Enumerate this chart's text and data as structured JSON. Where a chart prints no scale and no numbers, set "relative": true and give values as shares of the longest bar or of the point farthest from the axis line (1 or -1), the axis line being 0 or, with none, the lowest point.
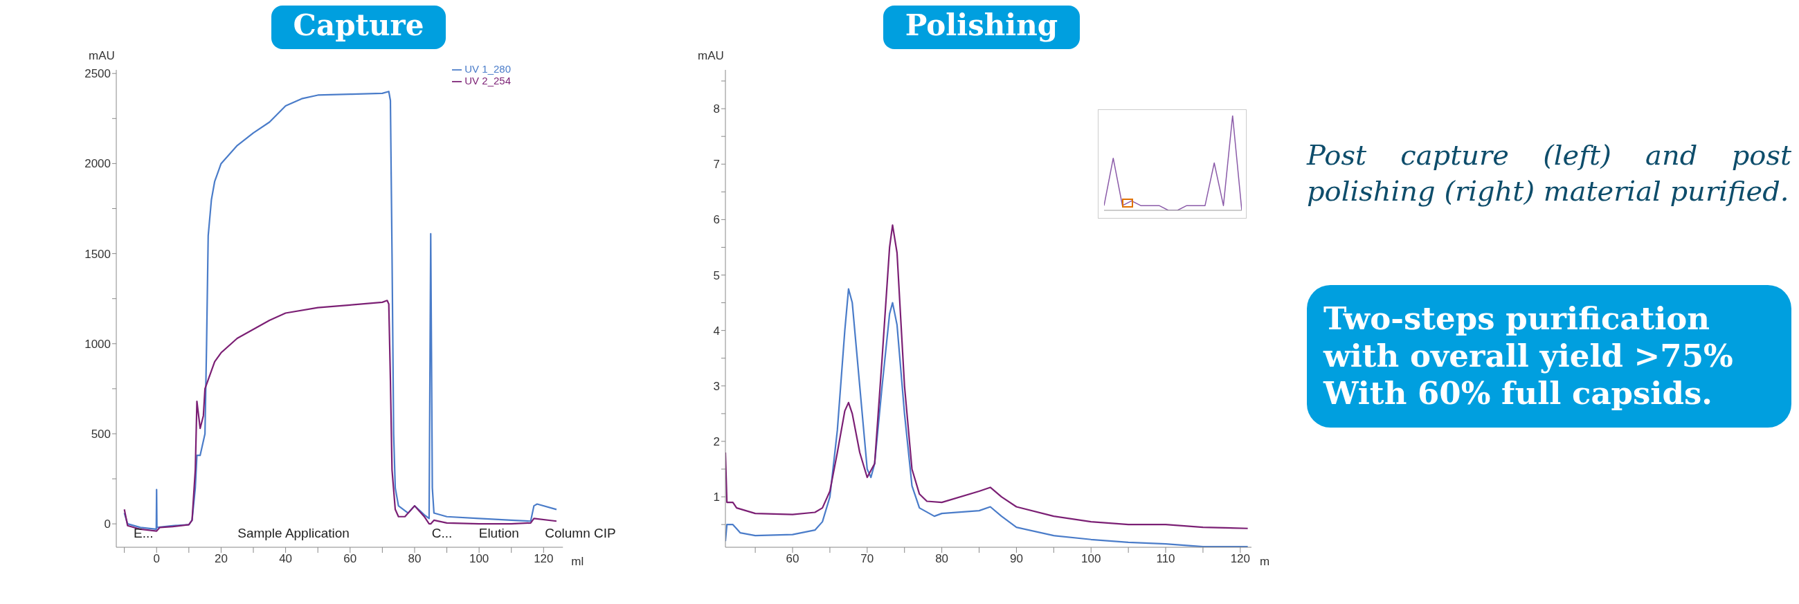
{
  "chart_data": [
    {
      "type": "line",
      "title": "Capture",
      "ylabel": "mAU",
      "xlabel": "ml",
      "legend": "top right",
      "xlim": [
        -12.5,
        126
      ],
      "ylim": [
        -130,
        2520
      ],
      "xticks": [
        {
          "value": -10,
          "label": null
        },
        0,
        {
          "value": 10,
          "label": null
        },
        20,
        {
          "value": 30,
          "label": null
        },
        40,
        {
          "value": 50,
          "label": null
        },
        60,
        {
          "value": 70,
          "label": null
        },
        80,
        {
          "value": 90,
          "label": null
        },
        100,
        {
          "value": 110,
          "label": null
        },
        120
      ],
      "yticks": [
        0,
        {
          "value": 250,
          "label": null
        },
        500,
        {
          "value": 750,
          "label": null
        },
        1000,
        {
          "value": 1250,
          "label": null
        },
        1500,
        {
          "value": 1750,
          "label": null
        },
        2000,
        {
          "value": 2250,
          "label": null
        },
        2500
      ],
      "annotations": [
        "E...",
        "Sample Application",
        "C...",
        "Elution",
        "Column CIP"
      ],
      "series": [
        {
          "name": "UV 1_280",
          "color": "#4a7cc9",
          "x": [
            -10,
            -9,
            -5,
            -0.1,
            0,
            0.1,
            5,
            10,
            11,
            12,
            12.5,
            13.5,
            15,
            15.5,
            16,
            17,
            18,
            20,
            25,
            30,
            35,
            40,
            45,
            50,
            60,
            70,
            72,
            72.5,
            73,
            73.5,
            74,
            75,
            78,
            80,
            83,
            84.5,
            85,
            85.5,
            86,
            90,
            100,
            110,
            116,
            117,
            118,
            124
          ],
          "values": [
            60,
            0,
            -20,
            -30,
            190,
            -20,
            -10,
            -5,
            20,
            200,
            380,
            380,
            500,
            1000,
            1600,
            1800,
            1900,
            2000,
            2100,
            2170,
            2230,
            2320,
            2360,
            2380,
            2385,
            2390,
            2400,
            2350,
            1500,
            500,
            200,
            100,
            60,
            100,
            50,
            30,
            1610,
            200,
            60,
            40,
            30,
            20,
            15,
            100,
            110,
            80
          ]
        },
        {
          "name": "UV 2_254",
          "color": "#7b1f74",
          "x": [
            -10,
            -9,
            -5,
            0,
            1,
            5,
            10,
            11,
            12,
            12.5,
            13.5,
            14.5,
            15,
            16,
            18,
            20,
            25,
            30,
            35,
            40,
            50,
            60,
            70,
            71.5,
            72,
            72.5,
            73,
            74,
            75,
            77,
            80,
            83,
            84.5,
            85,
            86,
            90,
            100,
            110,
            116,
            117,
            124
          ],
          "values": [
            80,
            -10,
            -30,
            -40,
            -20,
            -15,
            -5,
            20,
            300,
            680,
            530,
            600,
            750,
            800,
            900,
            950,
            1030,
            1080,
            1130,
            1170,
            1200,
            1215,
            1230,
            1240,
            1220,
            800,
            300,
            80,
            40,
            40,
            100,
            40,
            0,
            0,
            20,
            5,
            0,
            0,
            5,
            30,
            15
          ]
        }
      ]
    },
    {
      "type": "line",
      "title": "Polishing",
      "ylabel": "mAU",
      "xlabel": "m",
      "xlim": [
        51,
        121.5
      ],
      "ylim": [
        0.09,
        8.7
      ],
      "xticks": [
        {
          "value": 55,
          "label": null
        },
        60,
        {
          "value": 65,
          "label": null
        },
        70,
        {
          "value": 75,
          "label": null
        },
        80,
        {
          "value": 85,
          "label": null
        },
        90,
        {
          "value": 95,
          "label": null
        },
        100,
        {
          "value": 105,
          "label": null
        },
        110,
        {
          "value": 115,
          "label": null
        },
        120
      ],
      "yticks": [
        {
          "value": 0.5,
          "label": null
        },
        1,
        {
          "value": 1.5,
          "label": null
        },
        2,
        {
          "value": 2.5,
          "label": null
        },
        3,
        {
          "value": 3.5,
          "label": null
        },
        4,
        {
          "value": 4.5,
          "label": null
        },
        5,
        {
          "value": 5.5,
          "label": null
        },
        6,
        {
          "value": 6.5,
          "label": null
        },
        7,
        {
          "value": 7.5,
          "label": null
        },
        8,
        {
          "value": 8.5,
          "label": null
        }
      ],
      "series": [
        {
          "color": "#4a7cc9",
          "x": [
            51,
            51.2,
            52,
            53,
            55,
            60,
            63,
            64,
            65,
            66,
            67,
            67.5,
            68,
            69,
            70,
            70.5,
            71,
            72,
            73,
            73.4,
            74,
            75,
            76,
            77,
            79,
            80,
            85,
            86.5,
            88,
            90,
            95,
            100,
            105,
            110,
            115,
            121
          ],
          "values": [
            0.2,
            0.5,
            0.5,
            0.35,
            0.3,
            0.32,
            0.4,
            0.55,
            1.0,
            2.2,
            4.0,
            4.75,
            4.5,
            3.0,
            1.5,
            1.35,
            1.6,
            3.0,
            4.3,
            4.5,
            4.1,
            2.5,
            1.2,
            0.8,
            0.65,
            0.7,
            0.75,
            0.82,
            0.65,
            0.45,
            0.3,
            0.23,
            0.18,
            0.15,
            0.1,
            0.1
          ]
        },
        {
          "color": "#7b1f74",
          "x": [
            51,
            51.2,
            52,
            52.5,
            55,
            60,
            63,
            64,
            65,
            66,
            67,
            67.5,
            68,
            69,
            70,
            71,
            72,
            73,
            73.4,
            74,
            75,
            76,
            77,
            78,
            80,
            85,
            86.5,
            88,
            90,
            95,
            100,
            105,
            110,
            115,
            121
          ],
          "values": [
            1.8,
            0.9,
            0.9,
            0.8,
            0.7,
            0.68,
            0.72,
            0.8,
            1.1,
            1.8,
            2.55,
            2.7,
            2.5,
            1.8,
            1.35,
            1.6,
            3.5,
            5.5,
            5.9,
            5.4,
            3.0,
            1.5,
            1.05,
            0.92,
            0.9,
            1.1,
            1.17,
            1.0,
            0.82,
            0.65,
            0.55,
            0.5,
            0.5,
            0.45,
            0.43
          ]
        }
      ]
    },
    {
      "type": "line",
      "relative": true,
      "categories": [
        null,
        null,
        null,
        null,
        null,
        null,
        null,
        null,
        null,
        null,
        null,
        null,
        null,
        null,
        null,
        null
      ],
      "series": [
        {
          "color": "#8a5aa8",
          "values": [
            0.05,
            0.55,
            0.05,
            0.1,
            0.05,
            0.05,
            0.05,
            0,
            0,
            0.05,
            0.05,
            0.05,
            0.5,
            0.05,
            1,
            0
          ]
        }
      ]
    },
    {
      "type": "other",
      "annotations": [
        "Post capture (left) and post polishing (right) material purified.",
        "Two-steps purification with overall yield >75% With 60% full capsids."
      ]
    }
  ]
}
